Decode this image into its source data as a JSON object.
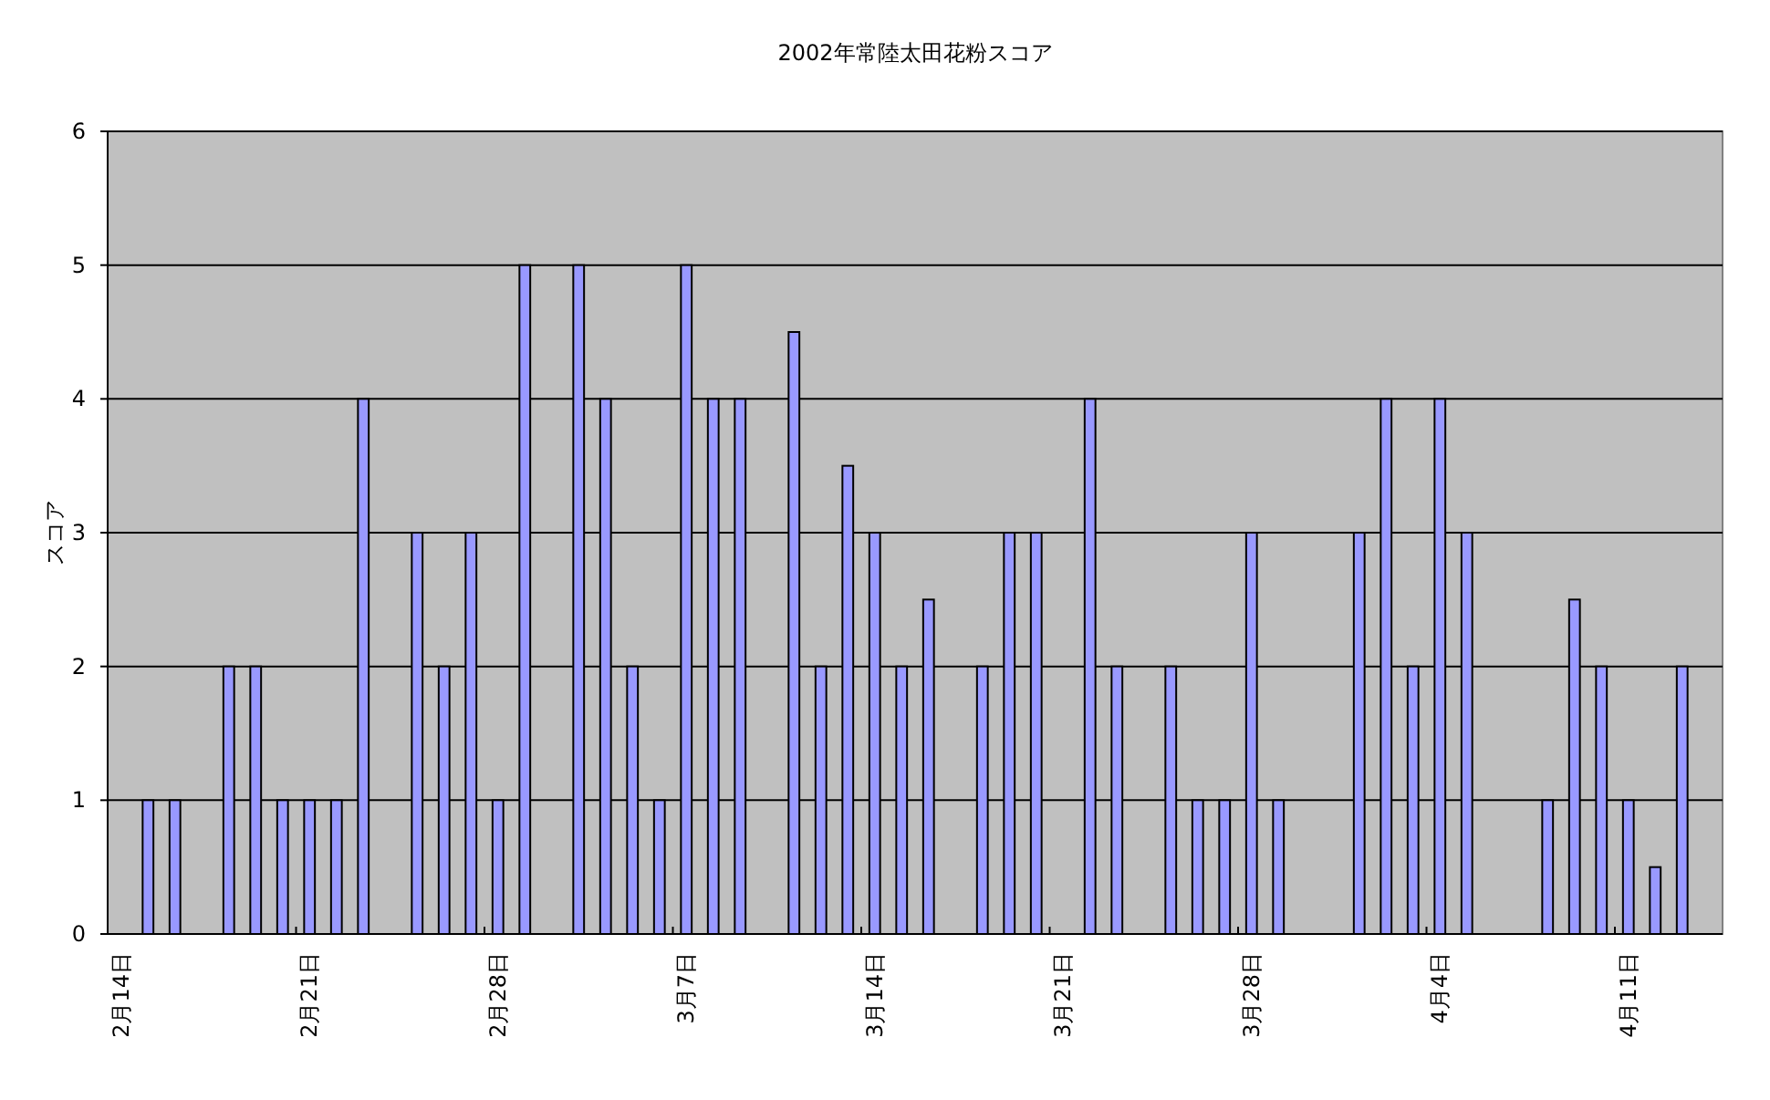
{
  "chart_data": {
    "type": "bar",
    "title": "2002年常陸太田花粉スコア",
    "ylabel": "スコア",
    "categories": [
      "2月14日",
      null,
      null,
      null,
      null,
      null,
      null,
      "2月21日",
      null,
      null,
      null,
      null,
      null,
      null,
      "2月28日",
      null,
      null,
      null,
      null,
      null,
      null,
      "3月7日",
      null,
      null,
      null,
      null,
      null,
      null,
      "3月14日",
      null,
      null,
      null,
      null,
      null,
      null,
      "3月21日",
      null,
      null,
      null,
      null,
      null,
      null,
      "3月28日",
      null,
      null,
      null,
      null,
      null,
      null,
      "4月4日",
      null,
      null,
      null,
      null,
      null,
      null,
      "4月11日",
      null,
      null,
      null
    ],
    "values": [
      null,
      1,
      1,
      null,
      2,
      2,
      1,
      1,
      1,
      4,
      null,
      3,
      2,
      3,
      1,
      5,
      null,
      5,
      4,
      2,
      1,
      5,
      4,
      4,
      null,
      4.5,
      2,
      3.5,
      3,
      2,
      2.5,
      null,
      2,
      3,
      3,
      null,
      4,
      2,
      null,
      2,
      1,
      1,
      3,
      1,
      null,
      null,
      3,
      4,
      2,
      4,
      3,
      null,
      null,
      1,
      2.5,
      2,
      1,
      0.5,
      2,
      null
    ],
    "color": "#9999ff",
    "ylim": [
      0,
      6
    ],
    "yticks": [
      0,
      1,
      2,
      3,
      4,
      5,
      6
    ],
    "grid": "y"
  }
}
